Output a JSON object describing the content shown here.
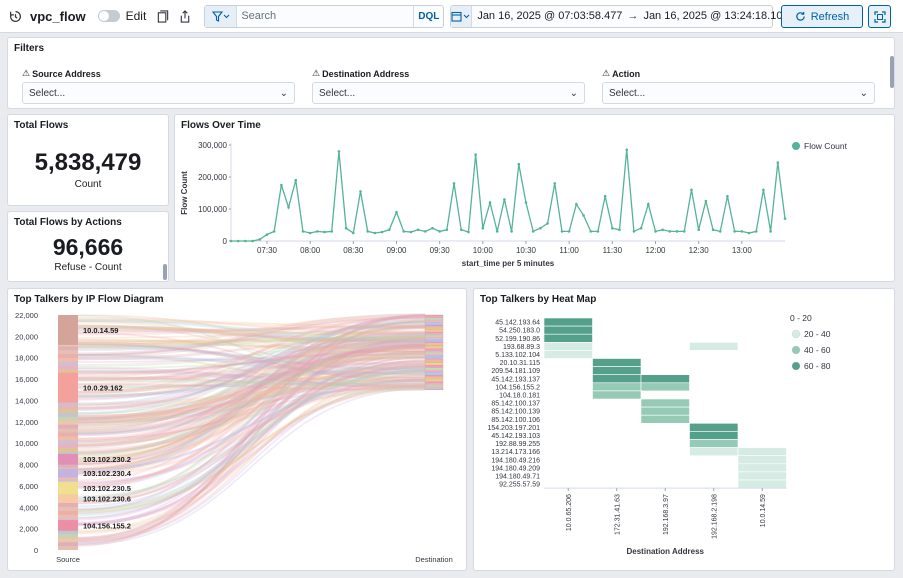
{
  "header": {
    "title": "vpc_flow",
    "edit_label": "Edit",
    "search_placeholder": "Search",
    "query_language": "DQL",
    "date_start": "Jan 16, 2025 @ 07:03:58.477",
    "date_end": "Jan 16, 2025 @ 13:24:18.103",
    "refresh_label": "Refresh"
  },
  "filters": {
    "title": "Filters",
    "controls": [
      {
        "label": "Source Address",
        "placeholder": "Select..."
      },
      {
        "label": "Destination Address",
        "placeholder": "Select..."
      },
      {
        "label": "Action",
        "placeholder": "Select..."
      }
    ]
  },
  "total_flows": {
    "title": "Total Flows",
    "value": "5,838,479",
    "label": "Count"
  },
  "flows_by_actions": {
    "title": "Total Flows by Actions",
    "value": "96,666",
    "label": "Refuse - Count"
  },
  "flows_over_time": {
    "title": "Flows Over Time",
    "chart_data": {
      "type": "line",
      "xlabel": "start_time per 5 minutes",
      "ylabel": "Flow Count",
      "ylim": [
        0,
        300000
      ],
      "y_ticks": [
        "0",
        "100,000",
        "200,000",
        "300,000"
      ],
      "x_ticks": [
        "07:30",
        "08:00",
        "08:30",
        "09:00",
        "09:30",
        "10:00",
        "10:30",
        "11:00",
        "11:30",
        "12:00",
        "12:30",
        "13:00"
      ],
      "series_name": "Flow Count",
      "color": "#54b399",
      "start_minute": 425,
      "step_minutes": 5,
      "values": [
        0,
        0,
        0,
        0,
        5000,
        20000,
        30000,
        175000,
        105000,
        190000,
        30000,
        25000,
        30000,
        28000,
        30000,
        280000,
        40000,
        25000,
        155000,
        30000,
        25000,
        28000,
        35000,
        90000,
        30000,
        28000,
        35000,
        30000,
        40000,
        30000,
        35000,
        180000,
        35000,
        28000,
        270000,
        40000,
        120000,
        30000,
        130000,
        30000,
        240000,
        120000,
        30000,
        40000,
        55000,
        180000,
        30000,
        30000,
        115000,
        80000,
        30000,
        30000,
        140000,
        40000,
        35000,
        285000,
        30000,
        40000,
        115000,
        30000,
        35000,
        30000,
        30000,
        30000,
        160000,
        35000,
        125000,
        35000,
        30000,
        140000,
        30000,
        30000,
        25000,
        30000,
        160000,
        30000,
        245000,
        70000
      ]
    }
  },
  "flow_diagram": {
    "title": "Top Talkers by IP Flow Diagram",
    "chart_data": {
      "type": "sankey",
      "ylim": [
        0,
        22000
      ],
      "y_ticks": [
        "0",
        "2,000",
        "4,000",
        "6,000",
        "8,000",
        "10,000",
        "12,000",
        "14,000",
        "16,000",
        "18,000",
        "20,000",
        "22,000"
      ],
      "source_label": "Source",
      "destination_label": "Destination",
      "nodes": [
        {
          "label": "10.0.14.59",
          "from": 19200,
          "to": 22000,
          "color": "#d4a39a"
        },
        {
          "label": "10.0.29.162",
          "from": 13800,
          "to": 16600,
          "color": "#f3a19a"
        },
        {
          "label": "103.102.230.2",
          "from": 8000,
          "to": 9000,
          "color": "#e28fb5"
        },
        {
          "label": "103.102.230.4",
          "from": 6800,
          "to": 7600,
          "color": "#c2b3e0"
        },
        {
          "label": "103.102.230.5",
          "from": 5200,
          "to": 6400,
          "color": "#f0df8f"
        },
        {
          "label": "103.102.230.6",
          "from": 4400,
          "to": 5200,
          "color": "#f7c9a4"
        },
        {
          "label": "104.156.155.2",
          "from": 1800,
          "to": 2800,
          "color": "#ec8fa4"
        }
      ]
    }
  },
  "heatmap": {
    "title": "Top Talkers by Heat Map",
    "chart_data": {
      "type": "heatmap",
      "xlabel": "Destination Address",
      "rows": [
        "45.142.193.64",
        "54.250.183.0",
        "52.199.190.86",
        "193.68.89.3",
        "5.133.102.104",
        "20.10.31.115",
        "209.54.181.109",
        "45.142.193.137",
        "104.156.155.2",
        "104.18.0.181",
        "85.142.100.137",
        "85.142.100.139",
        "85.142.100.106",
        "154.203.197.201",
        "45.142.193.103",
        "192.88.99.255",
        "13.214.173.166",
        "194.180.49.216",
        "194.180.49.209",
        "194.180.49.71",
        "92.255.57.59"
      ],
      "columns": [
        "10.0.65.206",
        "172.31.41.63",
        "192.168.3.97",
        "192.168.2.198",
        "10.0.14.59"
      ],
      "cells": [
        {
          "row": 0,
          "col": 0,
          "value": 75
        },
        {
          "row": 1,
          "col": 0,
          "value": 75
        },
        {
          "row": 2,
          "col": 0,
          "value": 75
        },
        {
          "row": 3,
          "col": 0,
          "value": 30
        },
        {
          "row": 3,
          "col": 3,
          "value": 30
        },
        {
          "row": 4,
          "col": 0,
          "value": 30
        },
        {
          "row": 5,
          "col": 1,
          "value": 75
        },
        {
          "row": 6,
          "col": 1,
          "value": 75
        },
        {
          "row": 7,
          "col": 1,
          "value": 75
        },
        {
          "row": 7,
          "col": 2,
          "value": 75
        },
        {
          "row": 8,
          "col": 1,
          "value": 50
        },
        {
          "row": 8,
          "col": 2,
          "value": 50
        },
        {
          "row": 9,
          "col": 1,
          "value": 50
        },
        {
          "row": 10,
          "col": 2,
          "value": 50
        },
        {
          "row": 11,
          "col": 2,
          "value": 50
        },
        {
          "row": 12,
          "col": 2,
          "value": 50
        },
        {
          "row": 13,
          "col": 3,
          "value": 75
        },
        {
          "row": 14,
          "col": 3,
          "value": 75
        },
        {
          "row": 15,
          "col": 3,
          "value": 50
        },
        {
          "row": 16,
          "col": 3,
          "value": 30
        },
        {
          "row": 16,
          "col": 4,
          "value": 30
        },
        {
          "row": 17,
          "col": 4,
          "value": 30
        },
        {
          "row": 18,
          "col": 4,
          "value": 30
        },
        {
          "row": 19,
          "col": 4,
          "value": 30
        },
        {
          "row": 20,
          "col": 4,
          "value": 30
        }
      ],
      "legend": [
        {
          "label": "0 - 20",
          "color": "#ffffff"
        },
        {
          "label": "20 - 40",
          "color": "#d6ebe3"
        },
        {
          "label": "40 - 60",
          "color": "#95cbb6"
        },
        {
          "label": "60 - 80",
          "color": "#54a08a"
        }
      ]
    }
  }
}
